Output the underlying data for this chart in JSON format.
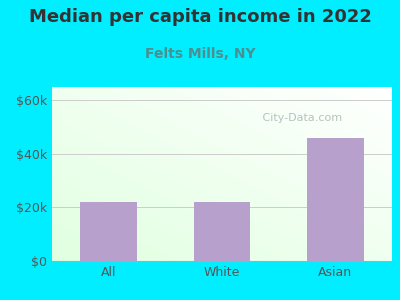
{
  "title": "Median per capita income in 2022",
  "subtitle": "Felts Mills, NY",
  "categories": [
    "All",
    "White",
    "Asian"
  ],
  "values": [
    22000,
    22000,
    46000
  ],
  "bar_color": "#b8a0cc",
  "background_color": "#00eeff",
  "title_color": "#333333",
  "subtitle_color": "#4a9090",
  "axis_label_color": "#555555",
  "yticks": [
    0,
    20000,
    40000,
    60000
  ],
  "ytick_labels": [
    "$0",
    "$20k",
    "$40k",
    "$60k"
  ],
  "ylim": [
    0,
    65000
  ],
  "watermark": " City-Data.com",
  "watermark_color": "#aab8b8",
  "title_fontsize": 13,
  "subtitle_fontsize": 10
}
